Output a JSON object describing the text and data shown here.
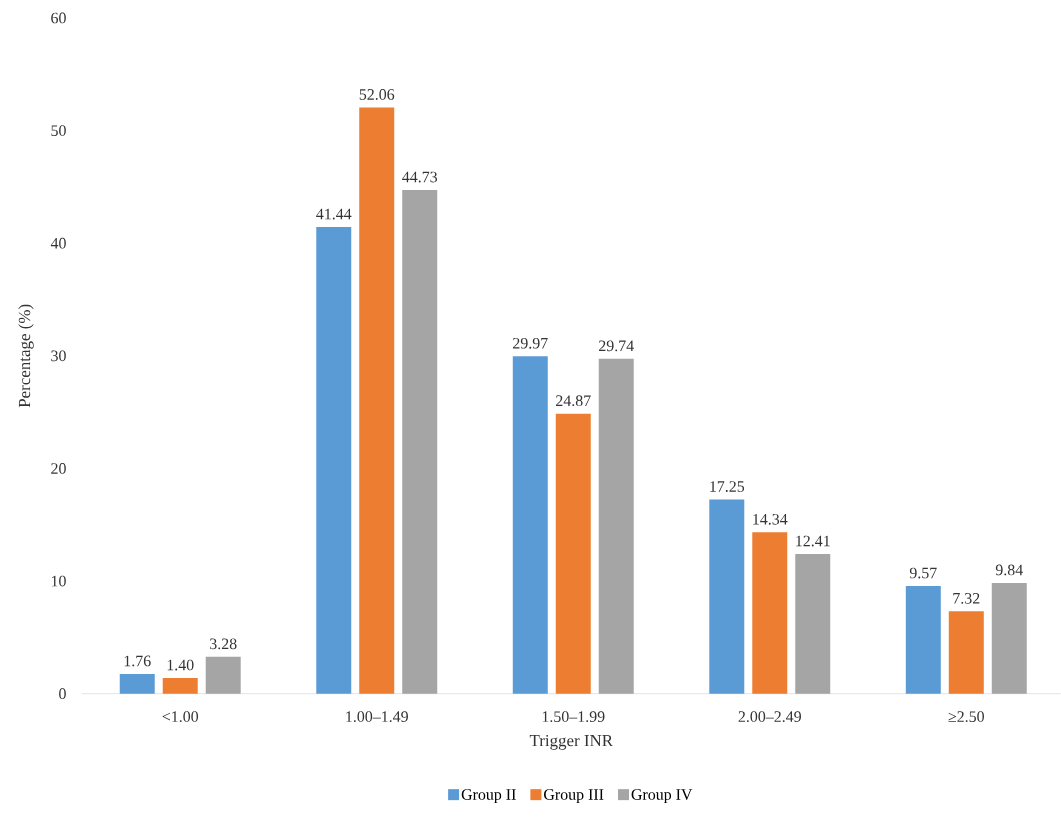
{
  "chart_data": {
    "type": "bar",
    "xlabel": "Trigger INR",
    "ylabel": "Percentage (%)",
    "categories": [
      "<1.00",
      "1.00–1.49",
      "1.50–1.99",
      "2.00–2.49",
      "≥2.50"
    ],
    "series": [
      {
        "name": "Group II",
        "color": "#5b9bd5",
        "values": [
          1.76,
          41.44,
          29.97,
          17.25,
          9.57
        ],
        "value_labels": [
          "1.76",
          "41.44",
          "29.97",
          "17.25",
          "9.57"
        ]
      },
      {
        "name": "Group III",
        "color": "#ed7d31",
        "values": [
          1.4,
          52.06,
          24.87,
          14.34,
          7.32
        ],
        "value_labels": [
          "1.40",
          "52.06",
          "24.87",
          "14.34",
          "7.32"
        ]
      },
      {
        "name": "Group IV",
        "color": "#a5a5a5",
        "values": [
          3.28,
          44.73,
          29.74,
          12.41,
          9.84
        ],
        "value_labels": [
          "3.28",
          "44.73",
          "29.74",
          "12.41",
          "9.84"
        ]
      }
    ],
    "ylim": [
      0,
      60
    ],
    "yticks": [
      0,
      10,
      20,
      30,
      40,
      50,
      60
    ],
    "grid": false,
    "legend": "bottom"
  }
}
